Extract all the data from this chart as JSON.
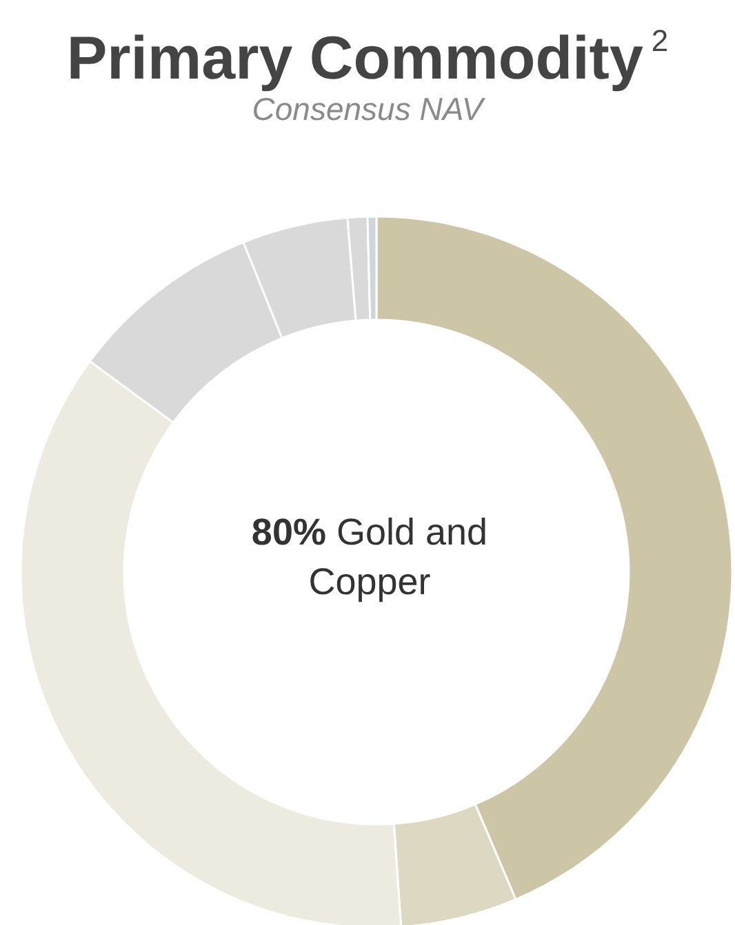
{
  "chart_data": {
    "type": "donut",
    "title": "Primary Commodity$^{2}$",
    "subtitle": "Consensus NAV",
    "categories": [
      null,
      null,
      null,
      null,
      null,
      null,
      null
    ],
    "values": [
      43.6,
      5.3,
      36.2,
      8.8,
      4.8,
      0.9,
      0.4
    ],
    "colors": [
      "#cdc6a6",
      "#ddd8c1",
      "#edeadf",
      "#d9d9d9",
      "#d9d9d9",
      "#d9d9d9",
      "#d0d5da"
    ],
    "annotations": [
      "80% Gold and Copper"
    ]
  }
}
